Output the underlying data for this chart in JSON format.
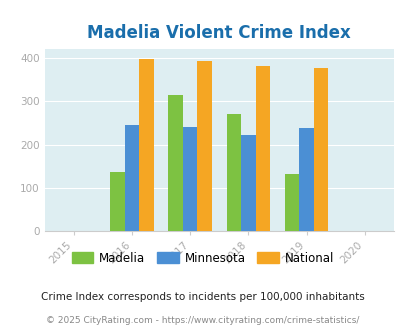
{
  "title": "Madelia Violent Crime Index",
  "years": [
    2015,
    2016,
    2017,
    2018,
    2019,
    2020
  ],
  "bar_years": [
    2016,
    2017,
    2018,
    2019
  ],
  "madelia": [
    137,
    315,
    270,
    133
  ],
  "minnesota": [
    245,
    241,
    222,
    239
  ],
  "national": [
    399,
    393,
    381,
    378
  ],
  "bar_width": 0.25,
  "colors": {
    "madelia": "#7dc242",
    "minnesota": "#4b8fd4",
    "national": "#f5a623"
  },
  "xlim": [
    2014.5,
    2020.5
  ],
  "ylim": [
    0,
    420
  ],
  "yticks": [
    0,
    100,
    200,
    300,
    400
  ],
  "bg_color": "#deeef2",
  "title_color": "#1a6eab",
  "subtitle": "Crime Index corresponds to incidents per 100,000 inhabitants",
  "footer": "© 2025 CityRating.com - https://www.cityrating.com/crime-statistics/",
  "subtitle_color": "#222222",
  "footer_color": "#888888",
  "tick_color": "#aaaaaa",
  "legend_labels": [
    "Madelia",
    "Minnesota",
    "National"
  ]
}
